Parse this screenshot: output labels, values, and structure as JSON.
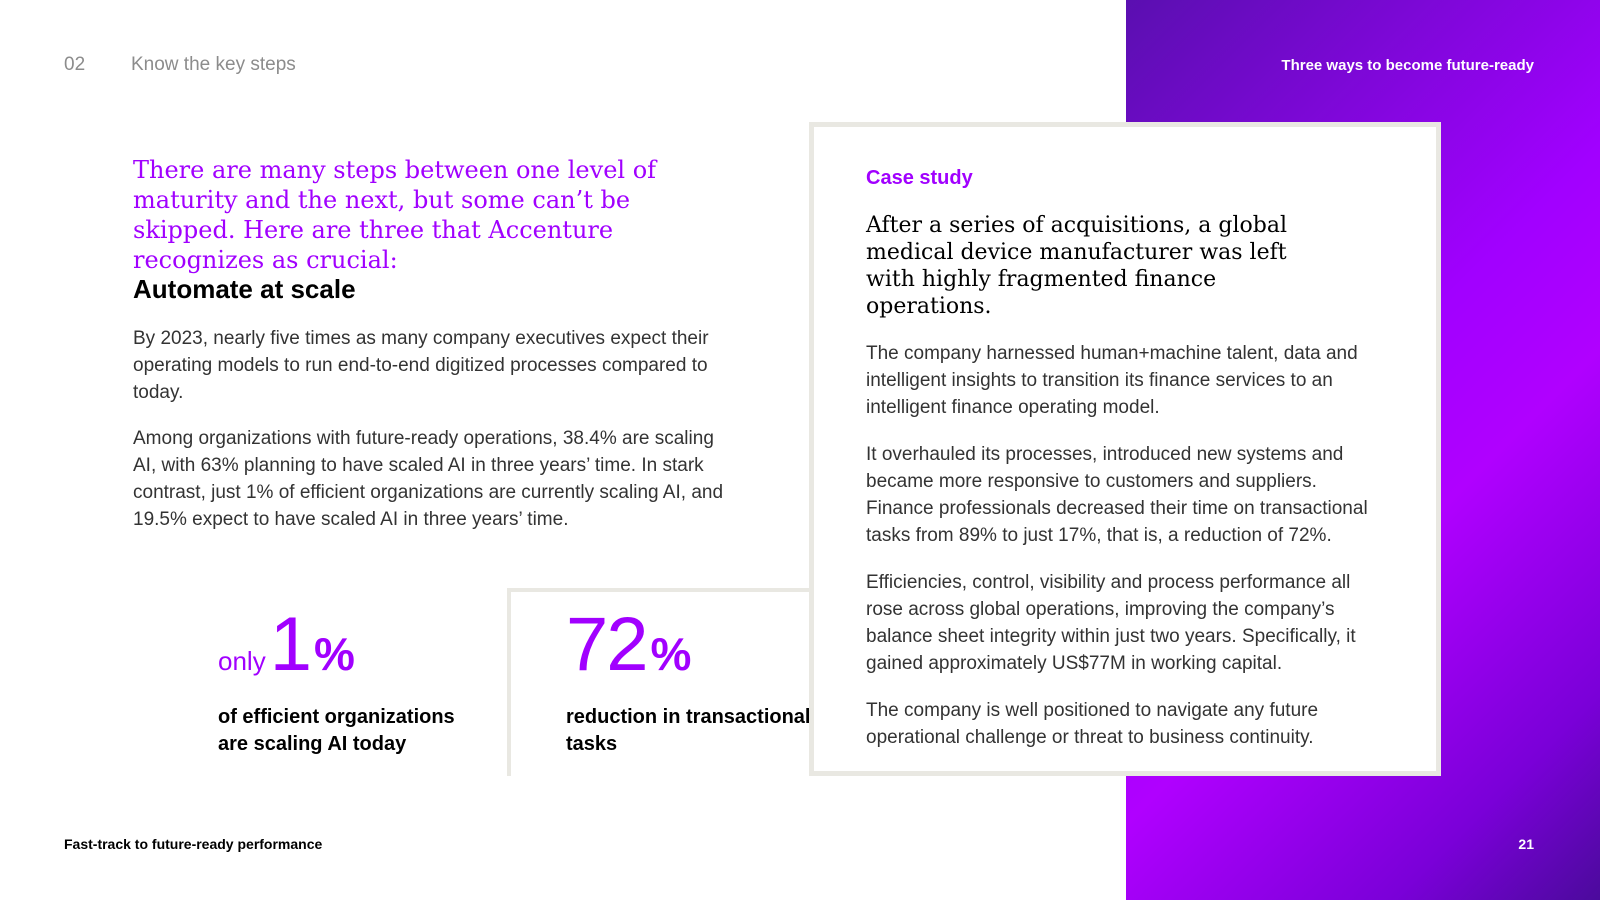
{
  "header": {
    "section_number": "02",
    "section_title": "Know the key steps",
    "running_title": "Three ways to become future-ready"
  },
  "intro": "There are many steps between one level of maturity and the next, but some can’t be skipped. Here are three that Accenture recognizes as crucial:",
  "section": {
    "heading": "Automate at scale",
    "paragraphs": [
      "By 2023, nearly five times as many company executives expect their operating models to run end-to-end digitized processes compared to today.",
      "Among organizations with future-ready operations, 38.4% are scaling AI, with 63% planning to have scaled AI in three years’ time. In stark contrast, just 1% of efficient organizations are currently scaling AI, and 19.5% expect to have scaled AI in three years’ time."
    ]
  },
  "stats": [
    {
      "prefix": "only",
      "number": "1",
      "unit": "%",
      "description": "of efficient organizations are scaling AI today"
    },
    {
      "prefix": "",
      "number": "72",
      "unit": "%",
      "description": "reduction in transactional tasks"
    }
  ],
  "case_study": {
    "label": "Case study",
    "intro": "After a series of acquisitions, a global medical device manufacturer was left with highly fragmented finance operations.",
    "paragraphs": [
      "The company harnessed human+machine talent, data and intelligent insights to transition its finance services to an intelligent finance operating model.",
      "It overhauled its processes, introduced new systems and became more responsive to customers and suppliers. Finance professionals decreased their time on transactional tasks from 89% to just 17%, that is, a reduction of 72%.",
      "Efficiencies, control, visibility and process performance all rose across global operations, improving the company’s balance sheet integrity within just two years. Specifically, it gained approximately US$77M in working capital.",
      "The company is well positioned to navigate any future operational challenge or threat to business continuity."
    ]
  },
  "footer": {
    "document_title": "Fast-track to future-ready performance",
    "page_number": "21"
  },
  "colors": {
    "accent": "#a100ff",
    "card_border": "#e9e8e2",
    "gradient_start": "#5a0fb0",
    "gradient_end": "#4b0a9c"
  }
}
